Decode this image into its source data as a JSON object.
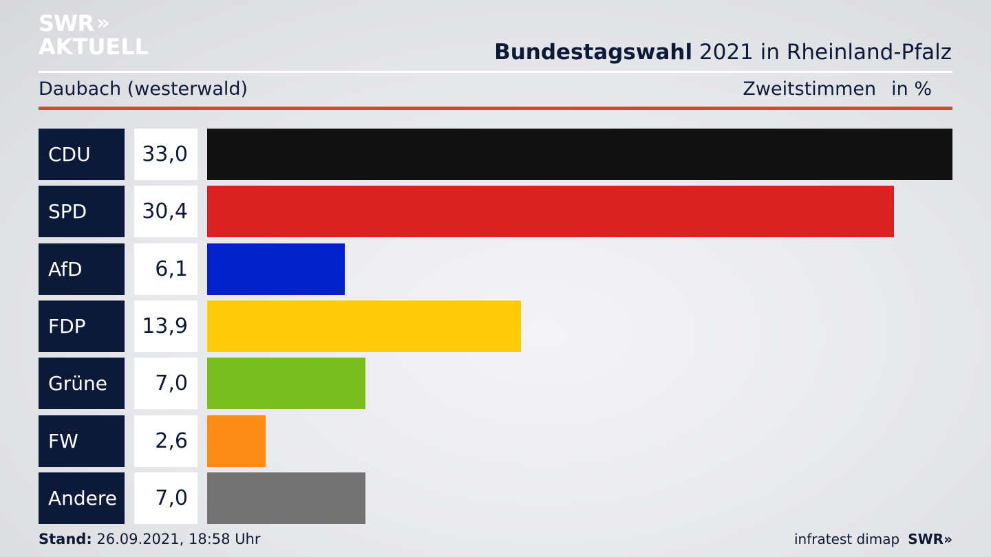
{
  "header": {
    "logo_line1": "SWR",
    "logo_chevrons": "»",
    "logo_line2": "AKTUELL",
    "title_bold": "Bundestagswahl",
    "title_rest": "2021 in Rheinland-Pfalz",
    "region": "Daubach (westerwald)",
    "measure": "Zweitstimmen",
    "unit": "in %"
  },
  "chart_data": {
    "type": "bar",
    "orientation": "horizontal",
    "categories": [
      "CDU",
      "SPD",
      "AfD",
      "FDP",
      "Grüne",
      "FW",
      "Andere"
    ],
    "values": [
      33.0,
      30.4,
      6.1,
      13.9,
      7.0,
      2.6,
      7.0
    ],
    "value_labels": [
      "33,0",
      "30,4",
      "6,1",
      "13,9",
      "7,0",
      "2,6",
      "7,0"
    ],
    "colors": [
      "#121212",
      "#d92121",
      "#0022c8",
      "#fdcb0a",
      "#79be1e",
      "#fd8b17",
      "#737373"
    ],
    "xlim": [
      0,
      33.0
    ]
  },
  "footer": {
    "stand_label": "Stand:",
    "stand_value": "26.09.2021, 18:58 Uhr",
    "source": "infratest dimap",
    "brand": "SWR»"
  }
}
